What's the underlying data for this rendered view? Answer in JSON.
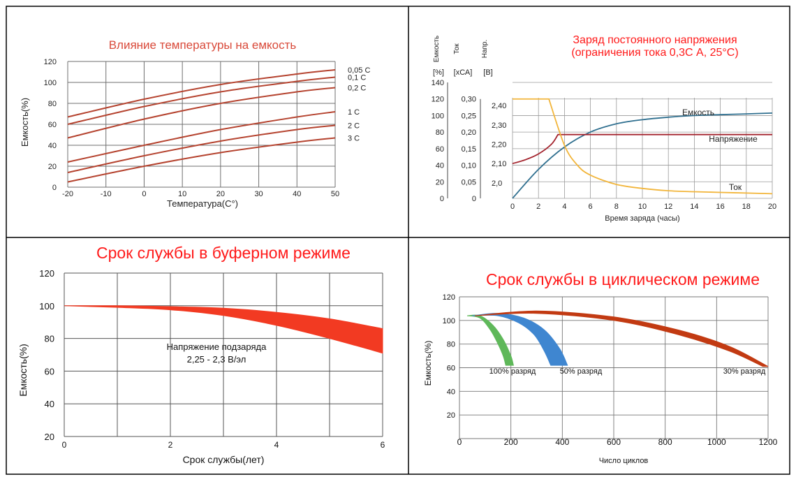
{
  "colors": {
    "grid": "#6f6f6f",
    "curve": "#b5432f",
    "title_red": "#ff1a1a",
    "title_soft": "#d94a3a",
    "blue": "#2f6f8f",
    "darkred": "#a3232d",
    "yellow": "#f2b53a",
    "band_red": "#f23a22",
    "green": "#5fb85a",
    "band_blue": "#3f86d0",
    "band_dark": "#c23a12"
  },
  "chart_data": [
    {
      "type": "line",
      "title": "Влияние температуры на емкость",
      "xlabel": "Температура(С°)",
      "ylabel": "Емкость(%)",
      "xlim": [
        -20,
        50
      ],
      "ylim": [
        0,
        120
      ],
      "x_ticks": [
        "-20",
        "-10",
        "0",
        "10",
        "20",
        "30",
        "40",
        "50"
      ],
      "y_ticks": [
        "0",
        "20",
        "40",
        "60",
        "80",
        "100",
        "120"
      ],
      "grid": true,
      "series": [
        {
          "name": "0,05 C",
          "x": [
            -20,
            0,
            20,
            40,
            50
          ],
          "values": [
            67,
            84,
            98,
            108,
            112
          ]
        },
        {
          "name": "0,1 C",
          "x": [
            -20,
            0,
            20,
            40,
            50
          ],
          "values": [
            60,
            77,
            91,
            101,
            105
          ]
        },
        {
          "name": "0,2 C",
          "x": [
            -20,
            0,
            20,
            40,
            50
          ],
          "values": [
            47,
            65,
            80,
            91,
            95
          ]
        },
        {
          "name": "1 C",
          "x": [
            -20,
            0,
            20,
            40,
            50
          ],
          "values": [
            24,
            40,
            55,
            67,
            72
          ]
        },
        {
          "name": "2 C",
          "x": [
            -20,
            0,
            20,
            40,
            50
          ],
          "values": [
            14,
            30,
            44,
            55,
            59
          ]
        },
        {
          "name": "3 C",
          "x": [
            -20,
            0,
            20,
            40,
            50
          ],
          "values": [
            5,
            20,
            33,
            43,
            47
          ]
        }
      ]
    },
    {
      "type": "line",
      "title": "Заряд постоянного напряжения",
      "subtitle": "(ограничения тока 0,3С А, 25°С)",
      "xlabel": "Время заряда (часы)",
      "axis_headers": [
        {
          "name": "Емкость",
          "unit": "[%]"
        },
        {
          "name": "Ток",
          "unit": "[хСА]"
        },
        {
          "name": "Напр.",
          "unit": "[В]"
        }
      ],
      "xlim": [
        0,
        20
      ],
      "x_ticks": [
        "0",
        "2",
        "4",
        "6",
        "8",
        "10",
        "12",
        "14",
        "16",
        "18",
        "20"
      ],
      "y_capacity_ticks": [
        "0",
        "20",
        "40",
        "60",
        "80",
        "100",
        "120",
        "140"
      ],
      "y_current_ticks": [
        "0",
        "0,05",
        "0,10",
        "0,15",
        "0,20",
        "0,25",
        "0,30"
      ],
      "y_voltage_ticks": [
        "2,0",
        "2,10",
        "2,20",
        "2,30",
        "2,40"
      ],
      "grid": true,
      "series": [
        {
          "name": "Емкость",
          "axis": "capacity",
          "x": [
            0,
            2,
            4,
            6,
            8,
            10,
            12,
            14,
            16,
            18,
            20
          ],
          "values": [
            0,
            35,
            62,
            80,
            90,
            95,
            98,
            100,
            101,
            102,
            103
          ]
        },
        {
          "name": "Напряжение",
          "axis": "voltage",
          "x": [
            0,
            1,
            2,
            3,
            3.5,
            6,
            10,
            14,
            18,
            20
          ],
          "values": [
            2.1,
            2.12,
            2.15,
            2.2,
            2.25,
            2.25,
            2.25,
            2.25,
            2.25,
            2.25
          ]
        },
        {
          "name": "Ток",
          "axis": "current",
          "x": [
            0,
            1,
            2,
            2.8,
            4,
            5,
            6,
            8,
            10,
            12,
            14,
            16,
            18,
            20
          ],
          "values": [
            0.3,
            0.3,
            0.3,
            0.3,
            0.16,
            0.1,
            0.07,
            0.042,
            0.03,
            0.023,
            0.02,
            0.018,
            0.016,
            0.014
          ]
        }
      ]
    },
    {
      "type": "area",
      "title": "Срок службы в буферном режиме",
      "xlabel": "Срок службы(лет)",
      "ylabel": "Емкость(%)",
      "annotation": [
        "Напряжение подзаряда",
        "2,25 - 2,3 В/эл"
      ],
      "xlim": [
        0,
        6
      ],
      "ylim": [
        20,
        120
      ],
      "x_ticks": [
        "0",
        "2",
        "4",
        "6"
      ],
      "y_ticks": [
        "20",
        "40",
        "60",
        "80",
        "100",
        "120"
      ],
      "grid": true,
      "series": [
        {
          "name": "upper",
          "x": [
            0,
            1,
            2,
            3,
            4,
            5,
            6
          ],
          "values": [
            100,
            100,
            99.5,
            98.5,
            96,
            92,
            86
          ]
        },
        {
          "name": "lower",
          "x": [
            0,
            1,
            2,
            3,
            4,
            5,
            6
          ],
          "values": [
            100,
            99,
            97.5,
            94,
            88,
            80,
            71
          ]
        }
      ]
    },
    {
      "type": "area",
      "title": "Срок службы в циклическом режиме",
      "xlabel": "Число циклов",
      "ylabel": "Емкость(%)",
      "xlim": [
        0,
        1200
      ],
      "ylim": [
        0,
        120
      ],
      "x_ticks": [
        "0",
        "200",
        "400",
        "600",
        "800",
        "1000",
        "1200"
      ],
      "y_ticks": [
        "20",
        "40",
        "60",
        "80",
        "100",
        "120"
      ],
      "grid": true,
      "series": [
        {
          "name": "100% разряд",
          "upper_x": [
            30,
            80,
            130,
            170,
            200,
            210
          ],
          "upper": [
            104,
            104,
            96,
            84,
            70,
            62
          ],
          "lower_x": [
            30,
            80,
            120,
            150,
            170,
            180
          ],
          "lower": [
            104,
            102,
            92,
            80,
            70,
            62
          ]
        },
        {
          "name": "50% разряд",
          "upper_x": [
            50,
            150,
            250,
            330,
            390,
            420
          ],
          "upper": [
            104,
            106,
            102,
            92,
            76,
            62
          ],
          "lower_x": [
            50,
            150,
            230,
            290,
            330,
            355
          ],
          "lower": [
            104,
            104,
            98,
            88,
            74,
            62
          ]
        },
        {
          "name": "30% разряд",
          "upper_x": [
            60,
            300,
            600,
            850,
            1050,
            1200
          ],
          "upper": [
            104,
            108,
            103,
            92,
            78,
            61
          ],
          "lower_x": [
            60,
            300,
            600,
            850,
            1050,
            1180
          ],
          "lower": [
            104,
            106,
            100,
            88,
            74,
            61
          ]
        }
      ]
    }
  ]
}
